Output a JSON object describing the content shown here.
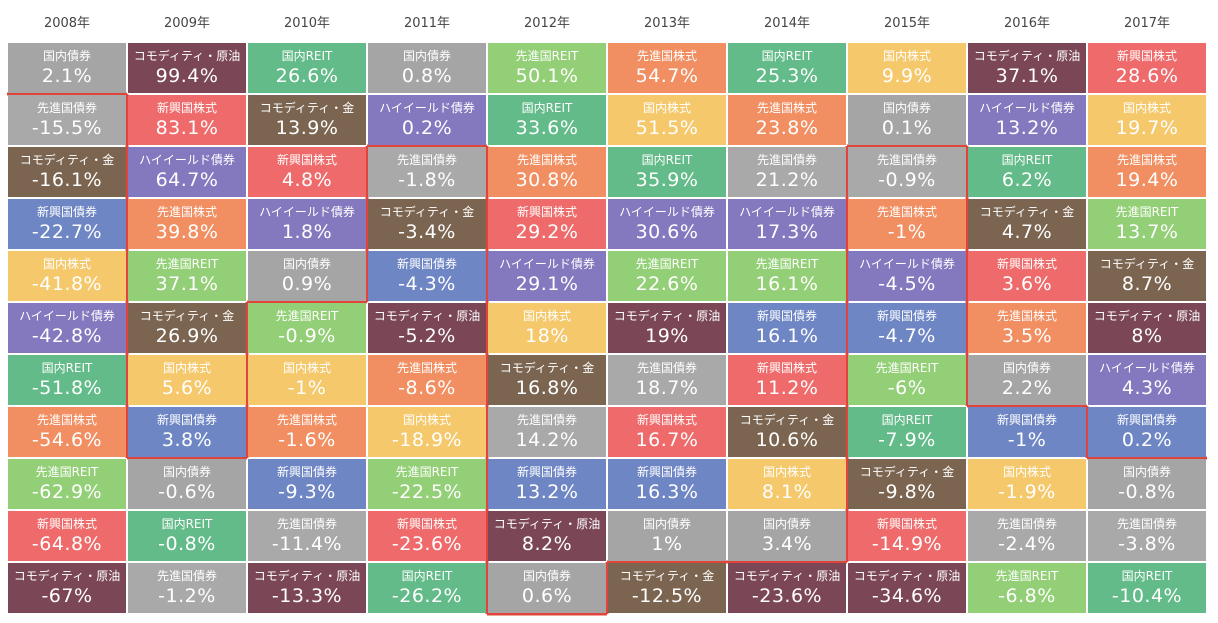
{
  "palette": {
    "国内債券": "#a5a5a5",
    "先進国債券": "#a9a9a9",
    "コモディティ・原油": "#7b4757",
    "コモディティ・金": "#7b6550",
    "国内REIT": "#62bb88",
    "先進国REIT": "#93cf76",
    "先進国株式": "#f18f62",
    "国内株式": "#f4c86b",
    "新興国株式": "#ef6b6b",
    "ハイイールド債券": "#8479bf",
    "新興国債券": "#6f86c5"
  },
  "columns": [
    {
      "year": "2008年",
      "cells": [
        {
          "label": "国内債券",
          "value": "2.1%"
        },
        {
          "label": "先進国債券",
          "value": "-15.5%"
        },
        {
          "label": "コモディティ・金",
          "value": "-16.1%"
        },
        {
          "label": "新興国債券",
          "value": "-22.7%"
        },
        {
          "label": "国内株式",
          "value": "-41.8%"
        },
        {
          "label": "ハイイールド債券",
          "value": "-42.8%"
        },
        {
          "label": "国内REIT",
          "value": "-51.8%"
        },
        {
          "label": "先進国株式",
          "value": "-54.6%"
        },
        {
          "label": "先進国REIT",
          "value": "-62.9%"
        },
        {
          "label": "新興国株式",
          "value": "-64.8%"
        },
        {
          "label": "コモディティ・原油",
          "value": "-67%"
        }
      ]
    },
    {
      "year": "2009年",
      "cells": [
        {
          "label": "コモディティ・原油",
          "value": "99.4%"
        },
        {
          "label": "新興国株式",
          "value": "83.1%"
        },
        {
          "label": "ハイイールド債券",
          "value": "64.7%"
        },
        {
          "label": "先進国株式",
          "value": "39.8%"
        },
        {
          "label": "先進国REIT",
          "value": "37.1%"
        },
        {
          "label": "コモディティ・金",
          "value": "26.9%"
        },
        {
          "label": "国内株式",
          "value": "5.6%"
        },
        {
          "label": "新興国債券",
          "value": "3.8%"
        },
        {
          "label": "国内債券",
          "value": "-0.6%"
        },
        {
          "label": "国内REIT",
          "value": "-0.8%"
        },
        {
          "label": "先進国債券",
          "value": "-1.2%"
        }
      ]
    },
    {
      "year": "2010年",
      "cells": [
        {
          "label": "国内REIT",
          "value": "26.6%"
        },
        {
          "label": "コモディティ・金",
          "value": "13.9%"
        },
        {
          "label": "新興国株式",
          "value": "4.8%"
        },
        {
          "label": "ハイイールド債券",
          "value": "1.8%"
        },
        {
          "label": "国内債券",
          "value": "0.9%"
        },
        {
          "label": "先進国REIT",
          "value": "-0.9%"
        },
        {
          "label": "国内株式",
          "value": "-1%"
        },
        {
          "label": "先進国株式",
          "value": "-1.6%"
        },
        {
          "label": "新興国債券",
          "value": "-9.3%"
        },
        {
          "label": "先進国債券",
          "value": "-11.4%"
        },
        {
          "label": "コモディティ・原油",
          "value": "-13.3%"
        }
      ]
    },
    {
      "year": "2011年",
      "cells": [
        {
          "label": "国内債券",
          "value": "0.8%"
        },
        {
          "label": "ハイイールド債券",
          "value": "0.2%"
        },
        {
          "label": "先進国債券",
          "value": "-1.8%"
        },
        {
          "label": "コモディティ・金",
          "value": "-3.4%"
        },
        {
          "label": "新興国債券",
          "value": "-4.3%"
        },
        {
          "label": "コモディティ・原油",
          "value": "-5.2%"
        },
        {
          "label": "先進国株式",
          "value": "-8.6%"
        },
        {
          "label": "国内株式",
          "value": "-18.9%"
        },
        {
          "label": "先進国REIT",
          "value": "-22.5%"
        },
        {
          "label": "新興国株式",
          "value": "-23.6%"
        },
        {
          "label": "国内REIT",
          "value": "-26.2%"
        }
      ]
    },
    {
      "year": "2012年",
      "cells": [
        {
          "label": "先進国REIT",
          "value": "50.1%"
        },
        {
          "label": "国内REIT",
          "value": "33.6%"
        },
        {
          "label": "先進国株式",
          "value": "30.8%"
        },
        {
          "label": "新興国株式",
          "value": "29.2%"
        },
        {
          "label": "ハイイールド債券",
          "value": "29.1%"
        },
        {
          "label": "国内株式",
          "value": "18%"
        },
        {
          "label": "コモディティ・金",
          "value": "16.8%"
        },
        {
          "label": "先進国債券",
          "value": "14.2%"
        },
        {
          "label": "新興国債券",
          "value": "13.2%"
        },
        {
          "label": "コモディティ・原油",
          "value": "8.2%"
        },
        {
          "label": "国内債券",
          "value": "0.6%"
        }
      ]
    },
    {
      "year": "2013年",
      "cells": [
        {
          "label": "先進国株式",
          "value": "54.7%"
        },
        {
          "label": "国内株式",
          "value": "51.5%"
        },
        {
          "label": "国内REIT",
          "value": "35.9%"
        },
        {
          "label": "ハイイールド債券",
          "value": "30.6%"
        },
        {
          "label": "先進国REIT",
          "value": "22.6%"
        },
        {
          "label": "コモディティ・原油",
          "value": "19%"
        },
        {
          "label": "先進国債券",
          "value": "18.7%"
        },
        {
          "label": "新興国株式",
          "value": "16.7%"
        },
        {
          "label": "新興国債券",
          "value": "16.3%"
        },
        {
          "label": "国内債券",
          "value": "1%"
        },
        {
          "label": "コモディティ・金",
          "value": "-12.5%"
        }
      ]
    },
    {
      "year": "2014年",
      "cells": [
        {
          "label": "国内REIT",
          "value": "25.3%"
        },
        {
          "label": "先進国株式",
          "value": "23.8%"
        },
        {
          "label": "先進国債券",
          "value": "21.2%"
        },
        {
          "label": "ハイイールド債券",
          "value": "17.3%"
        },
        {
          "label": "先進国REIT",
          "value": "16.1%"
        },
        {
          "label": "新興国債券",
          "value": "16.1%"
        },
        {
          "label": "新興国株式",
          "value": "11.2%"
        },
        {
          "label": "コモディティ・金",
          "value": "10.6%"
        },
        {
          "label": "国内株式",
          "value": "8.1%"
        },
        {
          "label": "国内債券",
          "value": "3.4%"
        },
        {
          "label": "コモディティ・原油",
          "value": "-23.6%"
        }
      ]
    },
    {
      "year": "2015年",
      "cells": [
        {
          "label": "国内株式",
          "value": "9.9%"
        },
        {
          "label": "国内債券",
          "value": "0.1%"
        },
        {
          "label": "先進国債券",
          "value": "-0.9%"
        },
        {
          "label": "先進国株式",
          "value": "-1%"
        },
        {
          "label": "ハイイールド債券",
          "value": "-4.5%"
        },
        {
          "label": "新興国債券",
          "value": "-4.7%"
        },
        {
          "label": "先進国REIT",
          "value": "-6%"
        },
        {
          "label": "国内REIT",
          "value": "-7.9%"
        },
        {
          "label": "コモディティ・金",
          "value": "-9.8%"
        },
        {
          "label": "新興国株式",
          "value": "-14.9%"
        },
        {
          "label": "コモディティ・原油",
          "value": "-34.6%"
        }
      ]
    },
    {
      "year": "2016年",
      "cells": [
        {
          "label": "コモディティ・原油",
          "value": "37.1%"
        },
        {
          "label": "ハイイールド債券",
          "value": "13.2%"
        },
        {
          "label": "国内REIT",
          "value": "6.2%"
        },
        {
          "label": "コモディティ・金",
          "value": "4.7%"
        },
        {
          "label": "新興国株式",
          "value": "3.6%"
        },
        {
          "label": "先進国株式",
          "value": "3.5%"
        },
        {
          "label": "国内債券",
          "value": "2.2%"
        },
        {
          "label": "新興国債券",
          "value": "-1%"
        },
        {
          "label": "国内株式",
          "value": "-1.9%"
        },
        {
          "label": "先進国債券",
          "value": "-2.4%"
        },
        {
          "label": "先進国REIT",
          "value": "-6.8%"
        }
      ]
    },
    {
      "year": "2017年",
      "cells": [
        {
          "label": "新興国株式",
          "value": "28.6%"
        },
        {
          "label": "国内株式",
          "value": "19.7%"
        },
        {
          "label": "先進国株式",
          "value": "19.4%"
        },
        {
          "label": "先進国REIT",
          "value": "13.7%"
        },
        {
          "label": "コモディティ・金",
          "value": "8.7%"
        },
        {
          "label": "コモディティ・原油",
          "value": "8%"
        },
        {
          "label": "ハイイールド債券",
          "value": "4.3%"
        },
        {
          "label": "新興国債券",
          "value": "0.2%"
        },
        {
          "label": "国内債券",
          "value": "-0.8%"
        },
        {
          "label": "先進国債券",
          "value": "-3.8%"
        },
        {
          "label": "国内REIT",
          "value": "-10.4%"
        }
      ]
    }
  ]
}
